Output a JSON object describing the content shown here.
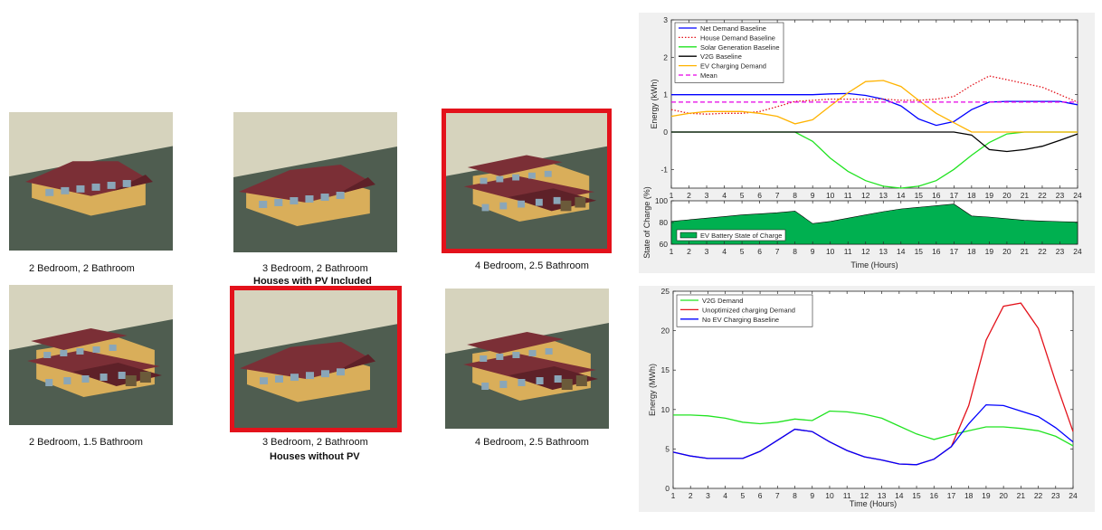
{
  "houses": [
    {
      "id": "h1",
      "caption": "2 Bedroom, 2 Bathroom",
      "selected": false,
      "style": "ranch"
    },
    {
      "id": "h2",
      "caption": "3 Bedroom, 2 Bathroom",
      "selected": false,
      "style": "wide"
    },
    {
      "id": "h3",
      "caption": "4 Bedroom, 2.5 Bathroom",
      "selected": true,
      "style": "two-story"
    },
    {
      "id": "h4",
      "caption": "2 Bedroom, 1.5 Bathroom",
      "selected": false,
      "style": "two-story-l"
    },
    {
      "id": "h5",
      "caption": "3 Bedroom, 2 Bathroom",
      "selected": true,
      "style": "wide"
    },
    {
      "id": "h6",
      "caption": "4 Bedroom, 2.5 Bathroom",
      "selected": false,
      "style": "two-story"
    }
  ],
  "groups": {
    "with_pv": "Houses with PV Included",
    "without_pv": "Houses without PV"
  },
  "colors": {
    "selection_border": "#e3121b",
    "sky": "#d6d3bd",
    "ground": "#4f5d50",
    "wall": "#d9ae5a",
    "roof": "#7b2f36",
    "window": "#8aa6b8"
  },
  "chart_data": [
    {
      "type": "line",
      "panel": "top",
      "xlabel": "",
      "ylabel": "Energy (kWh)",
      "x": [
        1,
        2,
        3,
        4,
        5,
        6,
        7,
        8,
        9,
        10,
        11,
        12,
        13,
        14,
        15,
        16,
        17,
        18,
        19,
        20,
        21,
        22,
        23,
        24
      ],
      "ylim": [
        -1.5,
        3
      ],
      "yticks": [
        -1,
        0,
        1,
        2,
        3
      ],
      "legend_position": "top-left",
      "grid": false,
      "series": [
        {
          "name": "Net Demand Baseline",
          "color": "#0000ff",
          "dash": "solid",
          "values": [
            1.0,
            1.0,
            1.0,
            1.0,
            1.0,
            1.0,
            1.0,
            1.0,
            1.0,
            1.02,
            1.03,
            0.98,
            0.88,
            0.7,
            0.35,
            0.18,
            0.28,
            0.6,
            0.8,
            0.82,
            0.82,
            0.82,
            0.82,
            0.73
          ]
        },
        {
          "name": "House Demand Baseline",
          "color": "#e3121b",
          "dash": "dotted",
          "values": [
            0.6,
            0.5,
            0.48,
            0.5,
            0.5,
            0.55,
            0.68,
            0.82,
            0.85,
            0.88,
            0.88,
            0.88,
            0.88,
            0.85,
            0.85,
            0.88,
            0.95,
            1.25,
            1.5,
            1.4,
            1.3,
            1.2,
            1.0,
            0.8
          ]
        },
        {
          "name": "Solar Generation Baseline",
          "color": "#21e321",
          "dash": "solid",
          "values": [
            0,
            0,
            0,
            0,
            0,
            0,
            0,
            0,
            -0.25,
            -0.7,
            -1.05,
            -1.3,
            -1.45,
            -1.5,
            -1.45,
            -1.3,
            -1.0,
            -0.62,
            -0.28,
            -0.05,
            0,
            0,
            0,
            0
          ]
        },
        {
          "name": "V2G Baseline",
          "color": "#000000",
          "dash": "solid",
          "values": [
            0,
            0,
            0,
            0,
            0,
            0,
            0,
            0,
            0,
            0,
            0,
            0,
            0,
            0,
            0,
            0,
            0,
            -0.08,
            -0.47,
            -0.52,
            -0.47,
            -0.38,
            -0.22,
            -0.05
          ]
        },
        {
          "name": "EV Charging Demand",
          "color": "#ffb300",
          "dash": "solid",
          "values": [
            0.42,
            0.5,
            0.55,
            0.55,
            0.55,
            0.5,
            0.42,
            0.22,
            0.33,
            0.7,
            1.05,
            1.35,
            1.38,
            1.22,
            0.85,
            0.5,
            0.25,
            0,
            0,
            0,
            0,
            0,
            0,
            0
          ]
        },
        {
          "name": "Mean",
          "color": "#e600e6",
          "dash": "dashed",
          "values": [
            0.8,
            0.8,
            0.8,
            0.8,
            0.8,
            0.8,
            0.8,
            0.8,
            0.8,
            0.8,
            0.8,
            0.8,
            0.8,
            0.8,
            0.8,
            0.8,
            0.8,
            0.8,
            0.8,
            0.8,
            0.8,
            0.8,
            0.8,
            0.8
          ]
        }
      ]
    },
    {
      "type": "area",
      "panel": "top-soc",
      "xlabel": "Time (Hours)",
      "ylabel": "State of Charge (%)",
      "x": [
        1,
        2,
        3,
        4,
        5,
        6,
        7,
        8,
        9,
        10,
        11,
        12,
        13,
        14,
        15,
        16,
        17,
        18,
        19,
        20,
        21,
        22,
        23,
        24
      ],
      "ylim": [
        60,
        100
      ],
      "yticks": [
        60,
        80,
        100
      ],
      "legend_position": "bottom-left",
      "series": [
        {
          "name": "EV Battery State of Charge",
          "color": "#00b050",
          "values": [
            81,
            82.5,
            84,
            85.5,
            87,
            88,
            89,
            90.5,
            79,
            81,
            84,
            87,
            90,
            92.5,
            94,
            95.5,
            97,
            86,
            85,
            83.5,
            82,
            81.3,
            80.8,
            80.3
          ]
        }
      ]
    },
    {
      "type": "line",
      "panel": "bottom",
      "xlabel": "Time (Hours)",
      "ylabel": "Energy (MWh)",
      "x": [
        1,
        2,
        3,
        4,
        5,
        6,
        7,
        8,
        9,
        10,
        11,
        12,
        13,
        14,
        15,
        16,
        17,
        18,
        19,
        20,
        21,
        22,
        23,
        24
      ],
      "ylim": [
        0,
        25
      ],
      "yticks": [
        0,
        5,
        10,
        15,
        20,
        25
      ],
      "legend_position": "top-left",
      "grid": false,
      "series": [
        {
          "name": "V2G Demand",
          "color": "#21e321",
          "values": [
            9.3,
            9.3,
            9.2,
            8.9,
            8.4,
            8.2,
            8.4,
            8.8,
            8.6,
            9.8,
            9.7,
            9.4,
            8.9,
            7.9,
            6.9,
            6.2,
            6.8,
            7.3,
            7.8,
            7.8,
            7.6,
            7.3,
            6.6,
            5.4
          ]
        },
        {
          "name": "Unoptimized charging Demand",
          "color": "#e3121b",
          "values": [
            4.6,
            4.1,
            3.8,
            3.8,
            3.8,
            4.7,
            6.1,
            7.5,
            7.2,
            5.9,
            4.8,
            4.0,
            3.6,
            3.1,
            3.0,
            3.7,
            5.3,
            10.5,
            18.8,
            23.1,
            23.5,
            20.3,
            13.5,
            7.2
          ]
        },
        {
          "name": "No EV Charging Baseline",
          "color": "#0000ff",
          "values": [
            4.6,
            4.1,
            3.8,
            3.8,
            3.8,
            4.7,
            6.1,
            7.5,
            7.2,
            5.9,
            4.8,
            4.0,
            3.6,
            3.1,
            3.0,
            3.7,
            5.3,
            8.2,
            10.6,
            10.5,
            9.8,
            9.1,
            7.7,
            5.9
          ]
        }
      ]
    }
  ]
}
